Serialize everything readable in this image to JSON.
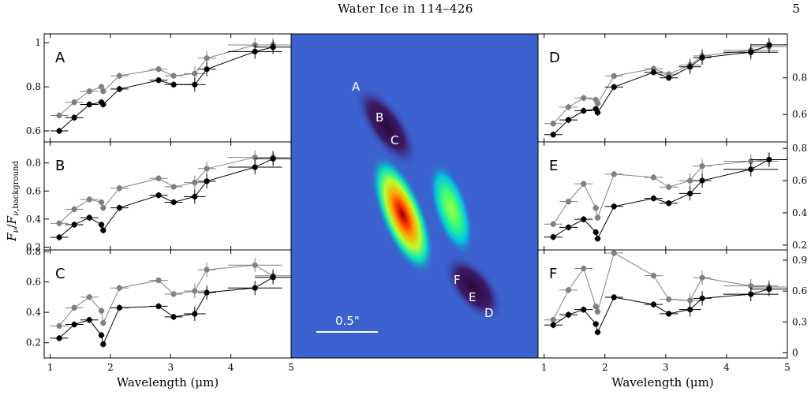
{
  "header": {
    "title": "Water Ice in 114–426",
    "page_number": "5"
  },
  "colors": {
    "series_a": "#000000",
    "series_b": "#808080",
    "image_background": "#3a5fcd"
  },
  "image_panel": {
    "region_labels": [
      "A",
      "B",
      "C",
      "D",
      "E",
      "F"
    ],
    "scale_label": "0.5\""
  },
  "chart_data": [
    {
      "type": "scatter",
      "panel": "A",
      "side": "left",
      "ylim": [
        0.55,
        1.04
      ],
      "yticks": [
        0.6,
        0.8,
        1
      ],
      "ytick_labels": [
        "0.6",
        "0.8",
        "1"
      ],
      "xlim": [
        0.9,
        5.0
      ],
      "ylabel": "F_ν/F_ν,background",
      "series": [
        {
          "color": "#000000",
          "points": [
            [
              1.15,
              0.6
            ],
            [
              1.4,
              0.66
            ],
            [
              1.65,
              0.72
            ],
            [
              1.85,
              0.73
            ],
            [
              1.88,
              0.72
            ],
            [
              2.15,
              0.79
            ],
            [
              2.8,
              0.83
            ],
            [
              3.05,
              0.81
            ],
            [
              3.4,
              0.81
            ],
            [
              3.6,
              0.88
            ],
            [
              4.4,
              0.96
            ],
            [
              4.7,
              0.98
            ]
          ]
        },
        {
          "color": "#808080",
          "points": [
            [
              1.15,
              0.67
            ],
            [
              1.4,
              0.73
            ],
            [
              1.65,
              0.78
            ],
            [
              1.85,
              0.8
            ],
            [
              1.88,
              0.78
            ],
            [
              2.15,
              0.85
            ],
            [
              2.8,
              0.88
            ],
            [
              3.05,
              0.85
            ],
            [
              3.4,
              0.86
            ],
            [
              3.6,
              0.93
            ],
            [
              4.4,
              0.99
            ],
            [
              4.7,
              0.99
            ]
          ]
        }
      ]
    },
    {
      "type": "scatter",
      "panel": "B",
      "side": "left",
      "ylim": [
        0.18,
        0.95
      ],
      "yticks": [
        0.2,
        0.4,
        0.6,
        0.8
      ],
      "ytick_labels": [
        "0.2",
        "0.4",
        "0.6",
        "0.8"
      ],
      "xlim": [
        0.9,
        5.0
      ],
      "series": [
        {
          "color": "#000000",
          "points": [
            [
              1.15,
              0.27
            ],
            [
              1.4,
              0.36
            ],
            [
              1.65,
              0.41
            ],
            [
              1.85,
              0.36
            ],
            [
              1.88,
              0.32
            ],
            [
              2.15,
              0.48
            ],
            [
              2.8,
              0.57
            ],
            [
              3.05,
              0.52
            ],
            [
              3.4,
              0.56
            ],
            [
              3.6,
              0.67
            ],
            [
              4.4,
              0.77
            ],
            [
              4.7,
              0.83
            ]
          ]
        },
        {
          "color": "#808080",
          "points": [
            [
              1.15,
              0.37
            ],
            [
              1.4,
              0.47
            ],
            [
              1.65,
              0.54
            ],
            [
              1.85,
              0.52
            ],
            [
              1.88,
              0.48
            ],
            [
              2.15,
              0.62
            ],
            [
              2.8,
              0.69
            ],
            [
              3.05,
              0.63
            ],
            [
              3.4,
              0.66
            ],
            [
              3.6,
              0.76
            ],
            [
              4.4,
              0.84
            ],
            [
              4.7,
              0.84
            ]
          ]
        }
      ]
    },
    {
      "type": "scatter",
      "panel": "C",
      "side": "left",
      "ylim": [
        0.1,
        0.81
      ],
      "yticks": [
        0.2,
        0.4,
        0.6,
        0.8
      ],
      "ytick_labels": [
        "0.2",
        "0.4",
        "0.6",
        "0.8"
      ],
      "xlim": [
        0.9,
        5.0
      ],
      "xticks": [
        1,
        2,
        3,
        4,
        5
      ],
      "xtick_labels": [
        "1",
        "2",
        "3",
        "4",
        "5"
      ],
      "xlabel": "Wavelength (μm)",
      "series": [
        {
          "color": "#000000",
          "points": [
            [
              1.15,
              0.23
            ],
            [
              1.4,
              0.32
            ],
            [
              1.65,
              0.35
            ],
            [
              1.85,
              0.25
            ],
            [
              1.88,
              0.19
            ],
            [
              2.15,
              0.43
            ],
            [
              2.8,
              0.44
            ],
            [
              3.05,
              0.37
            ],
            [
              3.4,
              0.39
            ],
            [
              3.6,
              0.53
            ],
            [
              4.4,
              0.56
            ],
            [
              4.7,
              0.63
            ]
          ]
        },
        {
          "color": "#808080",
          "points": [
            [
              1.15,
              0.31
            ],
            [
              1.4,
              0.43
            ],
            [
              1.65,
              0.5
            ],
            [
              1.85,
              0.41
            ],
            [
              1.88,
              0.33
            ],
            [
              2.15,
              0.56
            ],
            [
              2.8,
              0.61
            ],
            [
              3.05,
              0.52
            ],
            [
              3.4,
              0.54
            ],
            [
              3.6,
              0.68
            ],
            [
              4.4,
              0.71
            ],
            [
              4.7,
              0.64
            ]
          ]
        }
      ]
    },
    {
      "type": "scatter",
      "panel": "D",
      "side": "right",
      "ylim": [
        0.45,
        1.04
      ],
      "yticks": [
        0.6,
        0.8
      ],
      "ytick_labels": [
        "0.6",
        "0.8"
      ],
      "xlim": [
        0.9,
        5.0
      ],
      "series": [
        {
          "color": "#000000",
          "points": [
            [
              1.15,
              0.49
            ],
            [
              1.4,
              0.57
            ],
            [
              1.65,
              0.62
            ],
            [
              1.85,
              0.63
            ],
            [
              1.88,
              0.61
            ],
            [
              2.15,
              0.75
            ],
            [
              2.8,
              0.83
            ],
            [
              3.05,
              0.8
            ],
            [
              3.4,
              0.86
            ],
            [
              3.6,
              0.91
            ],
            [
              4.4,
              0.94
            ],
            [
              4.7,
              0.98
            ]
          ]
        },
        {
          "color": "#808080",
          "points": [
            [
              1.15,
              0.55
            ],
            [
              1.4,
              0.64
            ],
            [
              1.65,
              0.69
            ],
            [
              1.85,
              0.68
            ],
            [
              1.88,
              0.66
            ],
            [
              2.15,
              0.81
            ],
            [
              2.8,
              0.85
            ],
            [
              3.05,
              0.82
            ],
            [
              3.4,
              0.87
            ],
            [
              3.6,
              0.92
            ],
            [
              4.4,
              0.95
            ],
            [
              4.7,
              0.97
            ]
          ]
        }
      ]
    },
    {
      "type": "scatter",
      "panel": "E",
      "side": "right",
      "ylim": [
        0.17,
        0.84
      ],
      "yticks": [
        0.2,
        0.4,
        0.6,
        0.8
      ],
      "ytick_labels": [
        "0.2",
        "0.4",
        "0.6",
        "0.8"
      ],
      "xlim": [
        0.9,
        5.0
      ],
      "series": [
        {
          "color": "#000000",
          "points": [
            [
              1.15,
              0.25
            ],
            [
              1.4,
              0.31
            ],
            [
              1.65,
              0.36
            ],
            [
              1.85,
              0.28
            ],
            [
              1.88,
              0.24
            ],
            [
              2.15,
              0.44
            ],
            [
              2.8,
              0.49
            ],
            [
              3.05,
              0.46
            ],
            [
              3.4,
              0.52
            ],
            [
              3.6,
              0.6
            ],
            [
              4.4,
              0.67
            ],
            [
              4.7,
              0.73
            ]
          ]
        },
        {
          "color": "#808080",
          "points": [
            [
              1.15,
              0.33
            ],
            [
              1.4,
              0.47
            ],
            [
              1.65,
              0.58
            ],
            [
              1.85,
              0.43
            ],
            [
              1.88,
              0.37
            ],
            [
              2.15,
              0.64
            ],
            [
              2.8,
              0.62
            ],
            [
              3.05,
              0.56
            ],
            [
              3.4,
              0.6
            ],
            [
              3.6,
              0.69
            ],
            [
              4.4,
              0.72
            ],
            [
              4.7,
              0.73
            ]
          ]
        }
      ]
    },
    {
      "type": "scatter",
      "panel": "F",
      "side": "right",
      "ylim": [
        -0.05,
        1.0
      ],
      "yticks": [
        0,
        0.3,
        0.6,
        0.9
      ],
      "ytick_labels": [
        "0",
        "0.3",
        "0.6",
        "0.9"
      ],
      "xlim": [
        0.9,
        5.0
      ],
      "xticks": [
        1,
        2,
        3,
        4,
        5
      ],
      "xtick_labels": [
        "1",
        "2",
        "3",
        "4",
        "5"
      ],
      "xlabel": "Wavelength (μm)",
      "series": [
        {
          "color": "#000000",
          "points": [
            [
              1.15,
              0.27
            ],
            [
              1.4,
              0.37
            ],
            [
              1.65,
              0.42
            ],
            [
              1.85,
              0.28
            ],
            [
              1.88,
              0.2
            ],
            [
              2.15,
              0.54
            ],
            [
              2.8,
              0.47
            ],
            [
              3.05,
              0.38
            ],
            [
              3.4,
              0.42
            ],
            [
              3.6,
              0.53
            ],
            [
              4.4,
              0.57
            ],
            [
              4.7,
              0.62
            ]
          ]
        },
        {
          "color": "#808080",
          "points": [
            [
              1.15,
              0.32
            ],
            [
              1.4,
              0.61
            ],
            [
              1.65,
              0.82
            ],
            [
              1.85,
              0.45
            ],
            [
              1.88,
              0.4
            ],
            [
              2.15,
              0.97
            ],
            [
              2.8,
              0.75
            ],
            [
              3.05,
              0.52
            ],
            [
              3.4,
              0.51
            ],
            [
              3.6,
              0.73
            ],
            [
              4.4,
              0.65
            ],
            [
              4.7,
              0.64
            ]
          ]
        }
      ]
    }
  ]
}
